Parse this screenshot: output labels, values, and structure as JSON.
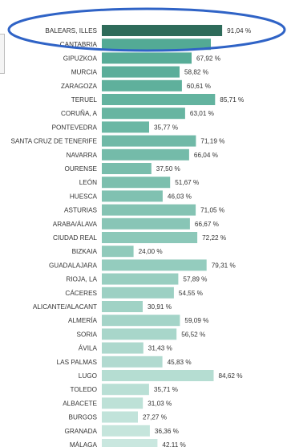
{
  "chart_data": {
    "type": "bar",
    "orientation": "horizontal",
    "categories": [
      "BALEARS, ILLES",
      "CANTABRIA",
      "GIPUZKOA",
      "MURCIA",
      "ZARAGOZA",
      "TERUEL",
      "CORUÑA, A",
      "PONTEVEDRA",
      "SANTA CRUZ DE TENERIFE",
      "NAVARRA",
      "OURENSE",
      "LEÓN",
      "HUESCA",
      "ASTURIAS",
      "ARABA/ÁLAVA",
      "CIUDAD REAL",
      "BIZKAIA",
      "GUADALAJARA",
      "RIOJA, LA",
      "CÁCERES",
      "ALICANTE/ALACANT",
      "ALMERÍA",
      "SORIA",
      "ÁVILA",
      "LAS PALMAS",
      "LUGO",
      "TOLEDO",
      "ALBACETE",
      "BURGOS",
      "GRANADA",
      "MÁLAGA"
    ],
    "values": [
      91.04,
      82.5,
      67.92,
      58.82,
      60.61,
      85.71,
      63.01,
      35.77,
      71.19,
      66.04,
      37.5,
      51.67,
      46.03,
      71.05,
      66.67,
      72.22,
      24.0,
      79.31,
      57.89,
      54.55,
      30.91,
      59.09,
      56.52,
      31.43,
      45.83,
      84.62,
      35.71,
      31.03,
      27.27,
      36.36,
      42.11
    ],
    "value_labels": [
      "91,04 %",
      "",
      "67,92 %",
      "58,82 %",
      "60,61 %",
      "85,71 %",
      "63,01 %",
      "35,77 %",
      "71,19 %",
      "66,04 %",
      "37,50 %",
      "51,67 %",
      "46,03 %",
      "71,05 %",
      "66,67 %",
      "72,22 %",
      "24,00 %",
      "79,31 %",
      "57,89 %",
      "54,55 %",
      "30,91 %",
      "59,09 %",
      "56,52 %",
      "31,43 %",
      "45,83 %",
      "84,62 %",
      "35,71 %",
      "31,03 %",
      "27,27 %",
      "36,36 %",
      "42,11 %"
    ],
    "colors": {
      "highlight": "#2e6b5a",
      "gradient_dark": "#4fa892",
      "gradient_light": "#c9e7df",
      "ellipse": "#2f63c6"
    },
    "highlighted_category": "BALEARS, ILLES",
    "xlim": [
      0,
      100
    ],
    "grid": false,
    "legend": "none"
  }
}
